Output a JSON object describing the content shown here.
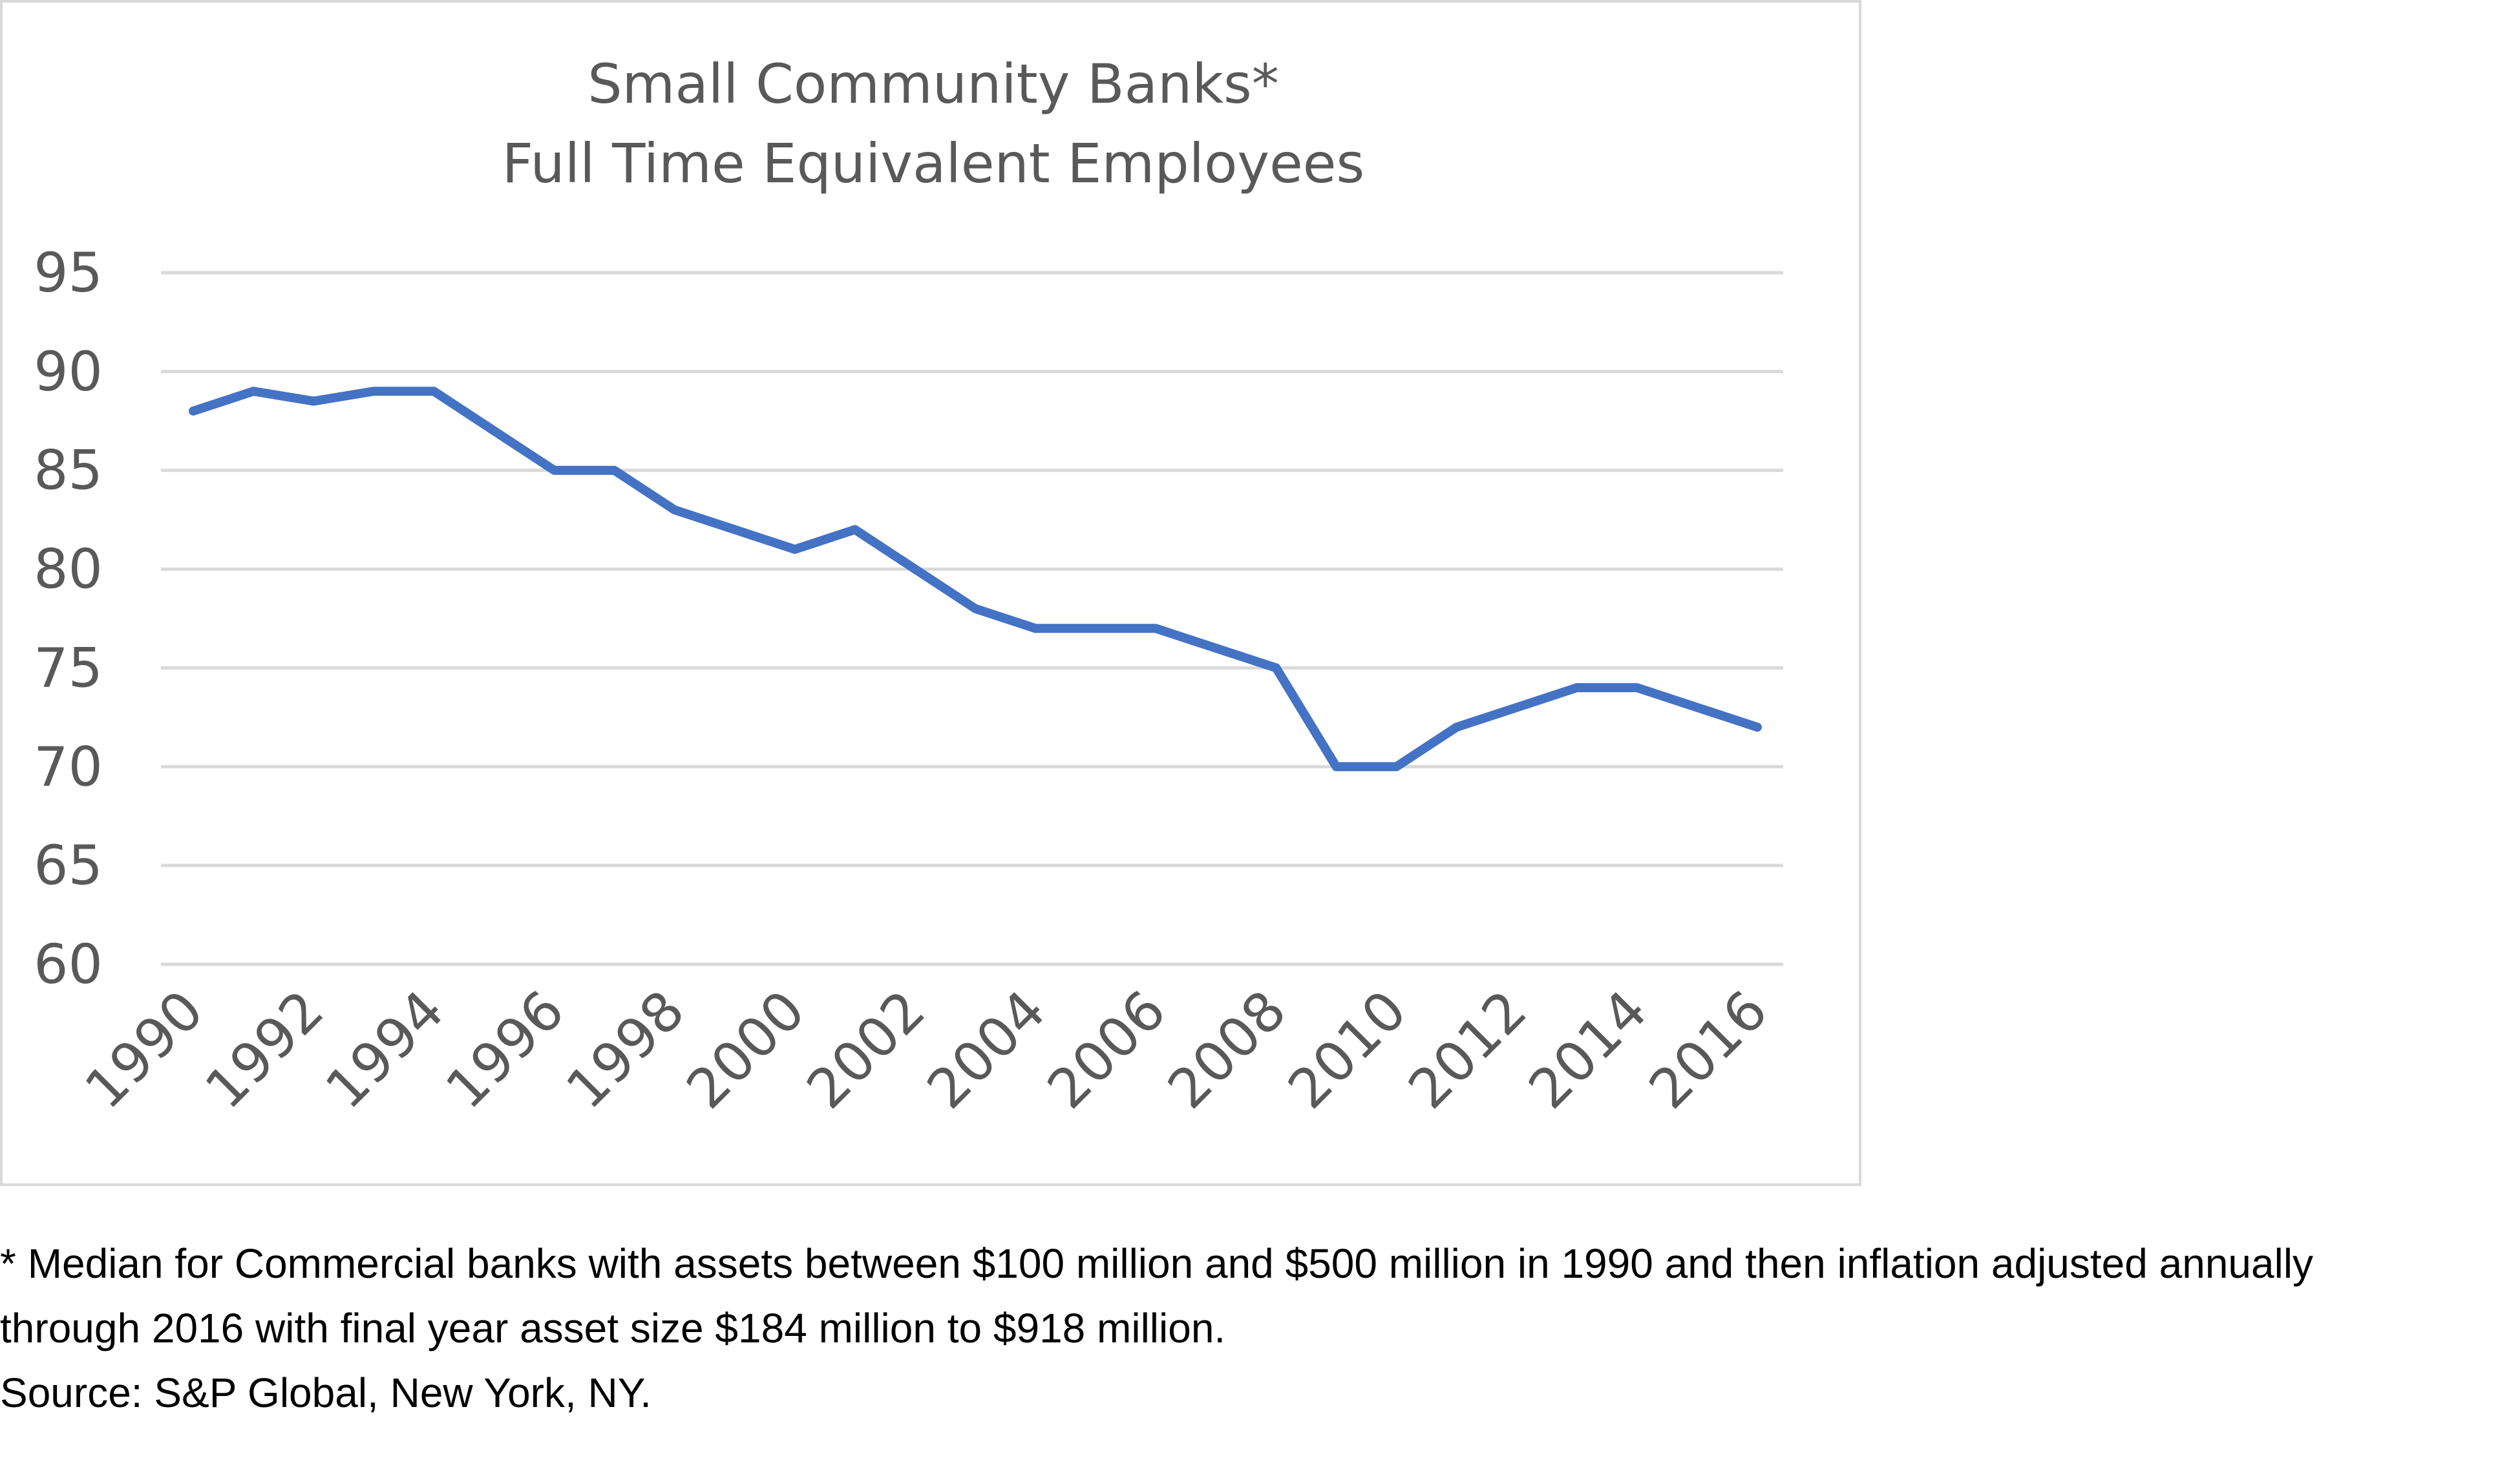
{
  "chart_data": {
    "type": "line",
    "title_lines": [
      "Small Community Banks*",
      "Full Time Equivalent Employees"
    ],
    "xlabel": "",
    "ylabel": "",
    "ylim": [
      60,
      95
    ],
    "yticks": [
      60,
      65,
      70,
      75,
      80,
      85,
      90,
      95
    ],
    "xticks": [
      "1990",
      "1992",
      "1994",
      "1996",
      "1998",
      "2000",
      "2002",
      "2004",
      "2006",
      "2008",
      "2010",
      "2012",
      "2014",
      "2016"
    ],
    "grid": true,
    "legend": "none",
    "series": [
      {
        "color": "#4472c4",
        "x": [
          1990,
          1991,
          1992,
          1993,
          1994,
          1995,
          1996,
          1997,
          1998,
          1999,
          2000,
          2001,
          2002,
          2003,
          2004,
          2005,
          2006,
          2007,
          2008,
          2009,
          2010,
          2011,
          2012,
          2013,
          2014,
          2015,
          2016
        ],
        "values": [
          88,
          89,
          88.5,
          89,
          89,
          87,
          85,
          85,
          83,
          82,
          81,
          82,
          80,
          78,
          77,
          77,
          77,
          76,
          75,
          70,
          70,
          72,
          73,
          74,
          74,
          73,
          72
        ]
      }
    ]
  },
  "footnote": {
    "line1": "* Median for Commercial banks with assets between $100 million and $500 million in 1990 and then inflation adjusted annually",
    "line2": "through 2016 with final year asset size $184 million to $918 million.",
    "line3": "Source: S&P Global, New York, NY."
  },
  "colors": {
    "series": "#4472c4",
    "grid": "#d9d9d9",
    "text": "#595959"
  }
}
